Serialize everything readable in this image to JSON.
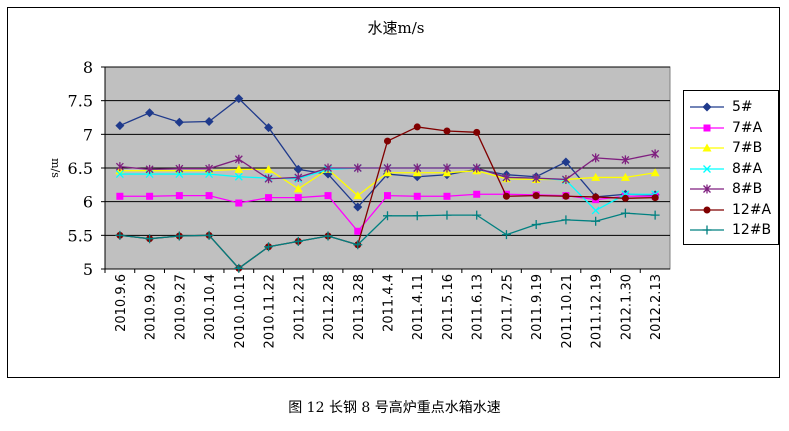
{
  "caption": "图 12   长钢 8 号高炉重点水箱水速",
  "chart_data": {
    "type": "line",
    "title": "水速m/s",
    "ylabel": "m/s",
    "xlabel": "",
    "ylim": [
      5,
      8
    ],
    "yticks": [
      "5",
      "5.5",
      "6",
      "6.5",
      "7",
      "7.5",
      "8"
    ],
    "grid": true,
    "legend_position": "right",
    "plot_bg": "#c0c0c0",
    "categories": [
      "2010.9.6",
      "2010.9.20",
      "2010.9.27",
      "2010.10.4",
      "2010.10.11",
      "2010.11.22",
      "2011.2.21",
      "2011.2.28",
      "2011.3.28",
      "2011.4.4",
      "2011.4.11",
      "2011.5.16",
      "2011.6.13",
      "2011.7.25",
      "2011.9.19",
      "2011.10.21",
      "2011.12.19",
      "2012.1.30",
      "2012.2.13"
    ],
    "series": [
      {
        "name": "5#",
        "color": "#1f3a8c",
        "marker": "diamond",
        "values": [
          7.13,
          7.32,
          7.18,
          7.19,
          7.53,
          7.1,
          6.48,
          6.41,
          5.92,
          6.41,
          6.37,
          6.4,
          6.48,
          6.4,
          6.37,
          6.59,
          6.07,
          6.11,
          6.1
        ]
      },
      {
        "name": "7#A",
        "color": "#ff00ff",
        "marker": "square",
        "values": [
          6.08,
          6.08,
          6.09,
          6.09,
          5.98,
          6.06,
          6.06,
          6.09,
          5.56,
          6.09,
          6.08,
          6.08,
          6.11,
          6.11,
          6.1,
          6.09,
          6.03,
          6.08,
          6.08
        ]
      },
      {
        "name": "7#B",
        "color": "#ffff00",
        "marker": "triangle",
        "values": [
          6.46,
          6.46,
          6.46,
          6.46,
          6.48,
          6.48,
          6.19,
          6.48,
          6.09,
          6.43,
          6.43,
          6.43,
          6.46,
          6.34,
          6.33,
          6.33,
          6.36,
          6.36,
          6.43
        ]
      },
      {
        "name": "8#A",
        "color": "#00ffff",
        "marker": "x",
        "values": [
          6.41,
          6.41,
          6.41,
          6.41,
          6.37,
          6.35,
          6.34,
          6.48,
          6.5,
          6.5,
          6.5,
          6.5,
          6.5,
          6.36,
          6.35,
          6.32,
          5.87,
          6.11,
          6.11
        ]
      },
      {
        "name": "8#B",
        "color": "#7f1f7f",
        "marker": "star",
        "values": [
          6.52,
          6.48,
          6.49,
          6.49,
          6.63,
          6.34,
          6.36,
          6.5,
          6.5,
          6.5,
          6.5,
          6.5,
          6.5,
          6.36,
          6.35,
          6.33,
          6.65,
          6.62,
          6.71
        ]
      },
      {
        "name": "12#A",
        "color": "#800000",
        "marker": "circle",
        "values": [
          5.5,
          5.45,
          5.49,
          5.5,
          5.01,
          5.33,
          5.41,
          5.49,
          5.36,
          6.9,
          7.11,
          7.05,
          7.03,
          6.08,
          6.09,
          6.08,
          6.07,
          6.05,
          6.06
        ]
      },
      {
        "name": "12#B",
        "color": "#008080",
        "marker": "plus",
        "values": [
          5.5,
          5.45,
          5.49,
          5.5,
          5.01,
          5.33,
          5.41,
          5.49,
          5.36,
          5.79,
          5.79,
          5.8,
          5.8,
          5.51,
          5.66,
          5.73,
          5.71,
          5.83,
          5.8
        ]
      }
    ]
  }
}
